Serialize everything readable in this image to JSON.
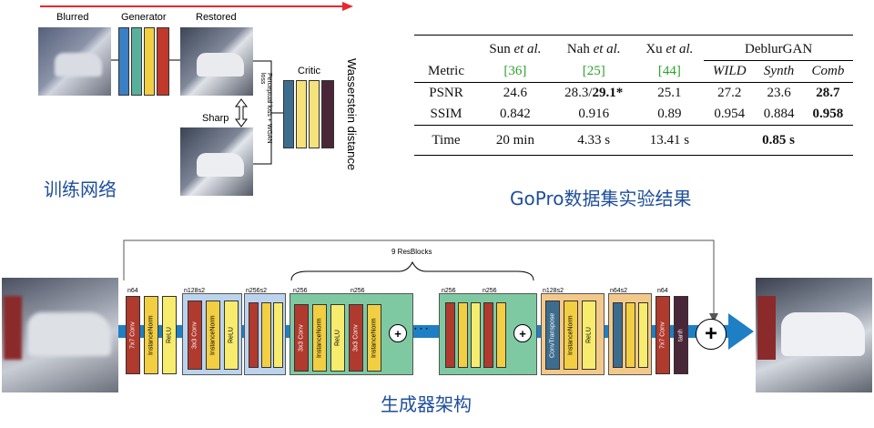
{
  "training": {
    "label_blurred": "Blurred",
    "label_generator": "Generator",
    "label_restored": "Restored",
    "label_sharp": "Sharp",
    "label_critic": "Critic",
    "loss_text": "Perceptual loss + WGAN loss",
    "wasserstein": "Wasserstein distance",
    "caption": "训练网络",
    "colors": {
      "arrow": "#e8282b",
      "gen1": "#3b7fc4",
      "gen2": "#58b09c",
      "gen3": "#f2ce43",
      "gen4": "#c0392b",
      "crit1": "#3d6d8e",
      "crit2": "#f5e27a",
      "crit3": "#f5e27a",
      "crit4": "#4a2738"
    }
  },
  "results_table": {
    "caption": "GoPro数据集实验结果",
    "header_top": [
      "",
      "Sun",
      "Nah",
      "Xu",
      "DeblurGAN"
    ],
    "header_top_suffix": "et al.",
    "header_bottom": [
      "Metric",
      "[36]",
      "[25]",
      "[44]",
      "WILD",
      "Synth",
      "Comb"
    ],
    "rows": [
      {
        "metric": "PSNR",
        "sun": "24.6",
        "nah_plain": "28.3/",
        "nah_bold": "29.1*",
        "xu": "25.1",
        "wild": "27.2",
        "synth": "23.6",
        "comb": "28.7"
      },
      {
        "metric": "SSIM",
        "sun": "0.842",
        "nah_plain": "0.916",
        "nah_bold": "",
        "xu": "0.89",
        "wild": "0.954",
        "synth": "0.884",
        "comb": "0.958"
      }
    ],
    "time": {
      "metric": "Time",
      "sun": "20 min",
      "nah": "4.33 s",
      "xu": "13.41 s",
      "deblur": "0.85 s"
    }
  },
  "generator": {
    "caption": "生成器架构",
    "resblocks_label": "9 ResBlocks",
    "groups": [
      {
        "tag": "n64",
        "layers": [
          "7x7 Conv",
          "InstanceNorm",
          "ReLU"
        ]
      },
      {
        "tag": "n128s2",
        "layers": [
          "3x3 Conv",
          "InstanceNorm",
          "ReLU"
        ]
      },
      {
        "tag": "n256s2",
        "layers": [
          "",
          "",
          ""
        ]
      },
      {
        "tag": "n256",
        "tag2": "n256",
        "layers": [
          "3x3 Conv",
          "InstanceNorm",
          "ReLU",
          "3x3 Conv",
          "InstanceNorm"
        ]
      },
      {
        "tag": "n256",
        "tag2": "n256",
        "layers": [
          "",
          "",
          "",
          "",
          ""
        ]
      },
      {
        "tag": "n128s2",
        "layers": [
          "ConvTranspose",
          "InstanceNorm",
          "ReLU"
        ]
      },
      {
        "tag": "n64s2",
        "layers": [
          "",
          "",
          ""
        ]
      },
      {
        "tag": "n64",
        "layers": [
          "7x7 Conv",
          "tanh"
        ]
      }
    ],
    "ellipsis": "· · ·",
    "plus": "+",
    "colors": {
      "conv": "#b03a2e",
      "norm": "#f2ce43",
      "relu": "#f7ec6e",
      "tanh": "#4a2738",
      "trans": "#3d6d8e",
      "bg_blue": "#bcd3ee",
      "bg_green": "#7fc9a2",
      "bg_orange": "#f3c98b",
      "pipe": "#1f7fc4"
    }
  }
}
